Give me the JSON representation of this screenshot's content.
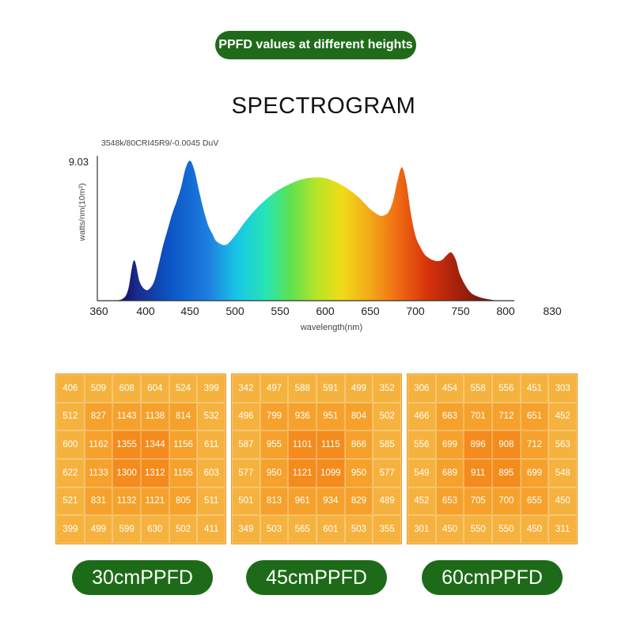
{
  "header": {
    "title": "PPFD values at different heights"
  },
  "spectrogram": {
    "title": "SPECTROGRAM"
  },
  "colors": {
    "badge_green": "#1f6b1a",
    "pill_green": "#1d6b18",
    "cell_outer": "#f6b23e",
    "cell_mid": "#f5a12b",
    "cell_inner": "#f48b1d"
  },
  "chart_data": [
    {
      "type": "area",
      "subtitle": "3548k/80CRI45R9/-0.0045 DuV",
      "xlabel": "wavelength(nm)",
      "ylabel": "watts/nm(10m²)",
      "ymax_label": "9.03",
      "ylim": [
        0,
        9.03
      ],
      "x_ticks": [
        360,
        400,
        450,
        500,
        550,
        600,
        650,
        700,
        750,
        800,
        830
      ],
      "x": [
        360,
        370,
        380,
        385,
        390,
        395,
        400,
        405,
        410,
        415,
        420,
        425,
        430,
        435,
        440,
        445,
        450,
        455,
        460,
        465,
        470,
        475,
        480,
        490,
        500,
        510,
        520,
        530,
        540,
        550,
        560,
        570,
        580,
        590,
        600,
        610,
        620,
        630,
        640,
        650,
        660,
        665,
        670,
        675,
        680,
        685,
        690,
        695,
        700,
        705,
        710,
        715,
        720,
        725,
        730,
        735,
        740,
        745,
        750,
        760,
        770,
        780,
        790,
        800
      ],
      "y": [
        0,
        0,
        0.1,
        0.7,
        2.6,
        1.2,
        0.7,
        0.8,
        1.3,
        2.4,
        3.6,
        4.6,
        5.6,
        6.4,
        7.3,
        8.5,
        9.03,
        8.4,
        7.1,
        5.9,
        4.9,
        4.3,
        3.8,
        3.6,
        4.2,
        5.0,
        5.7,
        6.3,
        6.8,
        7.2,
        7.5,
        7.75,
        7.9,
        7.95,
        7.9,
        7.7,
        7.4,
        7.0,
        6.5,
        5.9,
        5.5,
        5.5,
        5.7,
        6.4,
        7.7,
        8.6,
        7.6,
        5.6,
        4.2,
        3.5,
        3.0,
        2.75,
        2.6,
        2.55,
        2.65,
        2.95,
        3.1,
        2.6,
        1.6,
        0.6,
        0.25,
        0.1,
        0.02,
        0
      ]
    },
    {
      "type": "heatmap",
      "label": "30cmPPFD",
      "values": [
        [
          406,
          509,
          608,
          604,
          524,
          399
        ],
        [
          512,
          827,
          1143,
          1138,
          814,
          532
        ],
        [
          600,
          1162,
          1355,
          1344,
          1156,
          611
        ],
        [
          622,
          1133,
          1300,
          1312,
          1155,
          603
        ],
        [
          521,
          831,
          1132,
          1121,
          805,
          511
        ],
        [
          399,
          499,
          599,
          630,
          502,
          411
        ]
      ]
    },
    {
      "type": "heatmap",
      "label": "45cmPPFD",
      "values": [
        [
          342,
          497,
          588,
          591,
          499,
          352
        ],
        [
          496,
          799,
          936,
          951,
          804,
          502
        ],
        [
          587,
          955,
          1101,
          1115,
          866,
          585
        ],
        [
          577,
          950,
          1121,
          1099,
          950,
          577
        ],
        [
          501,
          813,
          961,
          934,
          829,
          489
        ],
        [
          349,
          503,
          565,
          601,
          503,
          355
        ]
      ]
    },
    {
      "type": "heatmap",
      "label": "60cmPPFD",
      "values": [
        [
          306,
          454,
          558,
          556,
          451,
          303
        ],
        [
          466,
          663,
          701,
          712,
          651,
          452
        ],
        [
          556,
          699,
          896,
          908,
          712,
          563
        ],
        [
          549,
          689,
          911,
          895,
          699,
          548
        ],
        [
          452,
          653,
          705,
          700,
          655,
          450
        ],
        [
          301,
          450,
          550,
          550,
          450,
          311
        ]
      ]
    }
  ]
}
